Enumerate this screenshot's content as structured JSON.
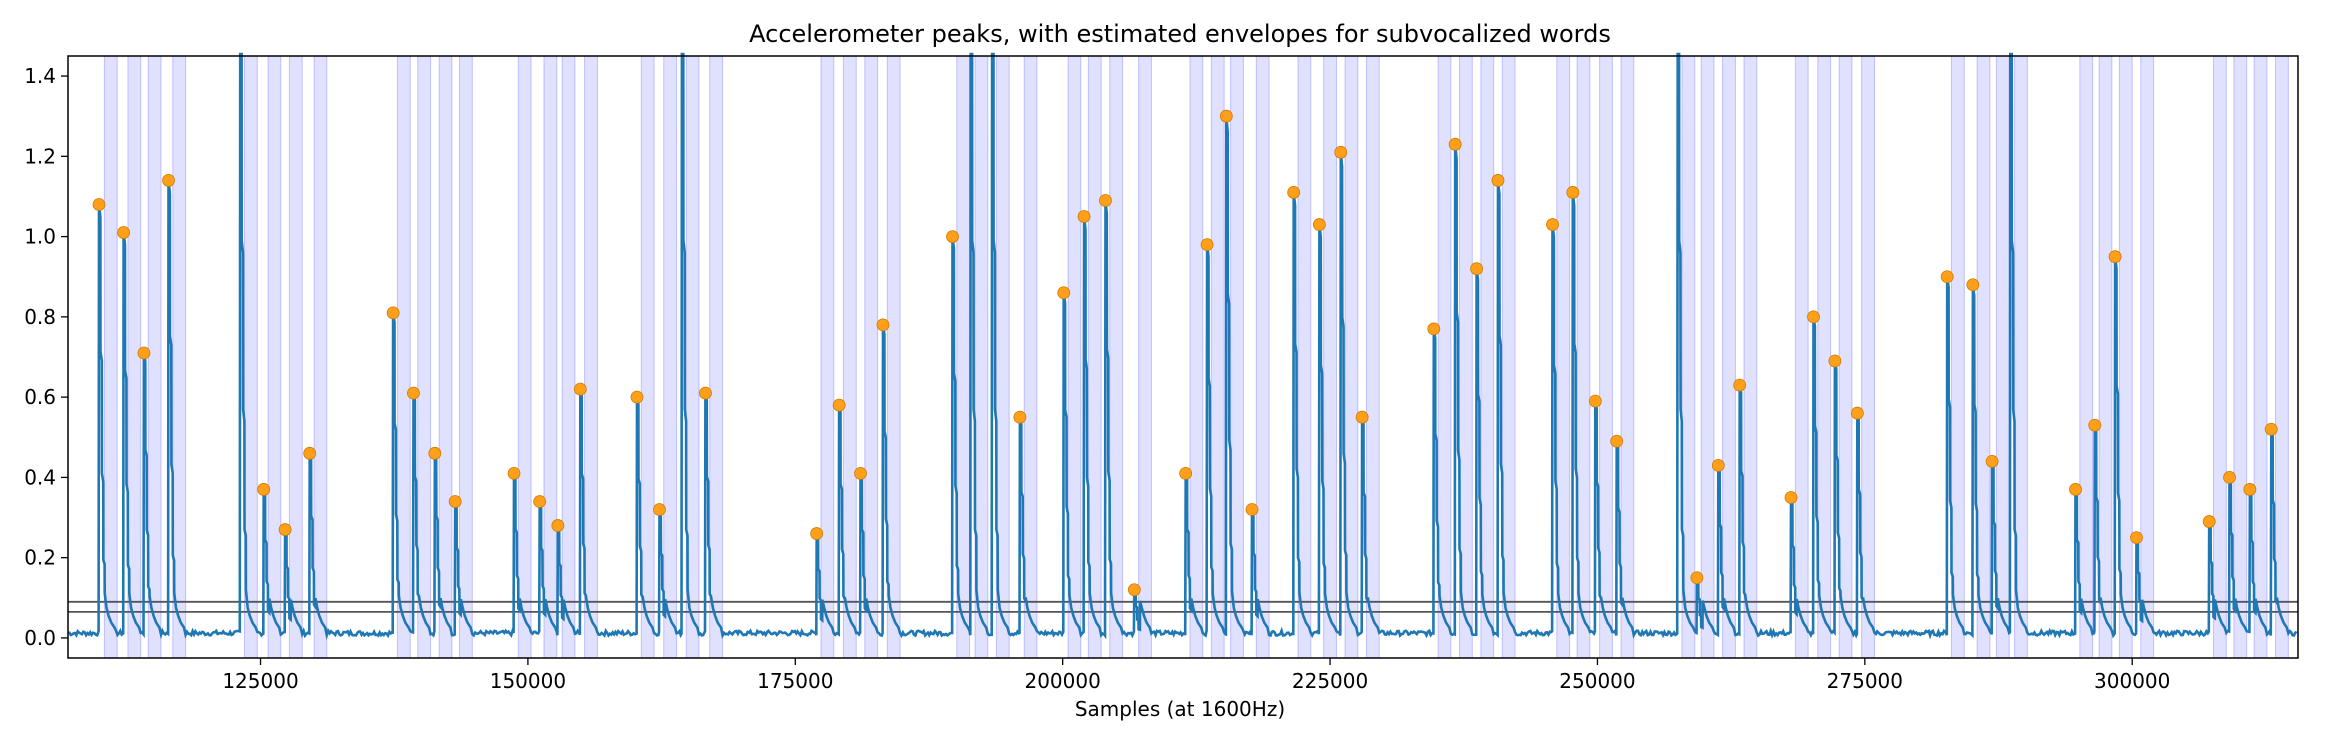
{
  "chart_data": {
    "type": "line",
    "title": "Accelerometer peaks, with estimated envelopes for subvocalized words",
    "xlabel": "Samples (at 1600Hz)",
    "ylabel": "",
    "xlim": [
      107000,
      315500
    ],
    "ylim": [
      -0.05,
      1.45
    ],
    "x_ticks": [
      125000,
      150000,
      175000,
      200000,
      225000,
      250000,
      275000,
      300000
    ],
    "y_ticks": [
      0.0,
      0.2,
      0.4,
      0.6,
      0.8,
      1.0,
      1.2,
      1.4
    ],
    "threshold_lines": [
      0.065,
      0.09
    ],
    "colors": {
      "signal": "#1f77b4",
      "peak": "#ff9f1a",
      "envelope": "#0000ff",
      "threshold": "#555555"
    },
    "peaks": {
      "x": [
        109900,
        112200,
        114100,
        116400,
        125300,
        127300,
        129600,
        137400,
        139300,
        141300,
        143200,
        148700,
        151100,
        152800,
        154900,
        160200,
        162300,
        166600,
        177000,
        179100,
        181100,
        183200,
        189700,
        196000,
        200100,
        202000,
        204000,
        206700,
        211500,
        213500,
        215300,
        217700,
        221600,
        224000,
        226000,
        228000,
        234700,
        236700,
        238700,
        240700,
        245800,
        247700,
        249800,
        251800,
        259300,
        261300,
        263300,
        268100,
        270200,
        272200,
        274300,
        282700,
        285100,
        286900,
        294700,
        296500,
        298400,
        300400,
        307200,
        309100,
        311000,
        313000
      ],
      "y": [
        1.08,
        1.01,
        0.71,
        1.14,
        0.37,
        0.27,
        0.46,
        0.81,
        0.61,
        0.46,
        0.34,
        0.41,
        0.34,
        0.28,
        0.62,
        0.6,
        0.32,
        0.61,
        0.26,
        0.58,
        0.41,
        0.78,
        1.0,
        0.55,
        0.86,
        1.05,
        1.09,
        0.12,
        0.41,
        0.98,
        1.3,
        0.32,
        1.11,
        1.03,
        1.21,
        0.55,
        0.77,
        1.23,
        0.92,
        1.14,
        1.03,
        1.11,
        0.59,
        0.49,
        0.15,
        0.43,
        0.63,
        0.35,
        0.8,
        0.69,
        0.56,
        0.9,
        0.88,
        0.44,
        0.37,
        0.53,
        0.95,
        0.25,
        0.29,
        0.4,
        0.37,
        0.52
      ]
    },
    "offscale_spikes": [
      {
        "x": 123100,
        "y": 1.5
      },
      {
        "x": 164400,
        "y": 1.5
      },
      {
        "x": 191400,
        "y": 1.5
      },
      {
        "x": 193400,
        "y": 1.5
      },
      {
        "x": 257500,
        "y": 1.5
      },
      {
        "x": 288600,
        "y": 1.5
      }
    ],
    "envelopes": [
      [
        110400,
        111600
      ],
      [
        112600,
        113800
      ],
      [
        114500,
        115700
      ],
      [
        116800,
        118000
      ],
      [
        123500,
        124700
      ],
      [
        125700,
        126900
      ],
      [
        127700,
        128900
      ],
      [
        130000,
        131200
      ],
      [
        137800,
        139000
      ],
      [
        139700,
        140900
      ],
      [
        141700,
        142900
      ],
      [
        143600,
        144800
      ],
      [
        149100,
        150300
      ],
      [
        151500,
        152700
      ],
      [
        153200,
        154400
      ],
      [
        155300,
        156500
      ],
      [
        160600,
        161800
      ],
      [
        162700,
        163900
      ],
      [
        164800,
        166000
      ],
      [
        167000,
        168200
      ],
      [
        177400,
        178600
      ],
      [
        179500,
        180700
      ],
      [
        181500,
        182700
      ],
      [
        183600,
        184800
      ],
      [
        190100,
        191300
      ],
      [
        191800,
        193000
      ],
      [
        193800,
        195000
      ],
      [
        196400,
        197600
      ],
      [
        200500,
        201700
      ],
      [
        202400,
        203600
      ],
      [
        204400,
        205600
      ],
      [
        207100,
        208300
      ],
      [
        211900,
        213100
      ],
      [
        213900,
        215100
      ],
      [
        215700,
        216900
      ],
      [
        218100,
        219300
      ],
      [
        222000,
        223200
      ],
      [
        224400,
        225600
      ],
      [
        226400,
        227600
      ],
      [
        228400,
        229600
      ],
      [
        235100,
        236300
      ],
      [
        237100,
        238300
      ],
      [
        239100,
        240300
      ],
      [
        241100,
        242300
      ],
      [
        246200,
        247400
      ],
      [
        248100,
        249300
      ],
      [
        250200,
        251400
      ],
      [
        252200,
        253400
      ],
      [
        257900,
        259100
      ],
      [
        259700,
        260900
      ],
      [
        261700,
        262900
      ],
      [
        263700,
        264900
      ],
      [
        268500,
        269700
      ],
      [
        270600,
        271800
      ],
      [
        272600,
        273800
      ],
      [
        274700,
        275900
      ],
      [
        283100,
        284300
      ],
      [
        285500,
        286700
      ],
      [
        287300,
        288500
      ],
      [
        289000,
        290200
      ],
      [
        295100,
        296300
      ],
      [
        296900,
        298100
      ],
      [
        298800,
        300000
      ],
      [
        300800,
        302000
      ],
      [
        307600,
        308800
      ],
      [
        309500,
        310700
      ],
      [
        311400,
        312600
      ],
      [
        313400,
        314600
      ]
    ]
  }
}
